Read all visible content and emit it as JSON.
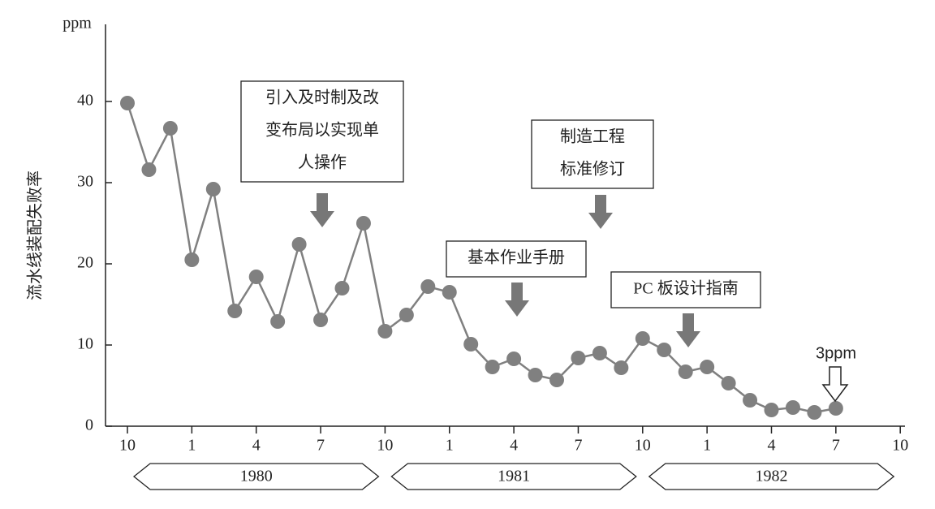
{
  "chart_data": {
    "type": "line",
    "y_unit": "ppm",
    "y_axis_label": "流水线装配失败率",
    "categories": [
      "10",
      null,
      null,
      "1",
      null,
      null,
      "4",
      null,
      null,
      "7",
      null,
      null,
      "10",
      null,
      null,
      "1",
      null,
      null,
      "4",
      null,
      null,
      "7",
      null,
      null,
      "10",
      null,
      null,
      "1",
      null,
      null,
      "4",
      null,
      null,
      "7",
      null,
      null,
      "10"
    ],
    "values": [
      39.8,
      31.6,
      36.7,
      20.5,
      29.2,
      14.2,
      18.4,
      12.9,
      22.4,
      13.1,
      17.0,
      25.0,
      11.7,
      13.7,
      17.2,
      16.5,
      10.1,
      7.3,
      8.3,
      6.3,
      5.7,
      8.4,
      9.0,
      7.2,
      10.8,
      9.4,
      6.7,
      7.3,
      5.3,
      3.2,
      2.0,
      2.3,
      1.7,
      2.2,
      null,
      null,
      null
    ],
    "color": "#808080",
    "ylim": [
      0,
      50
    ],
    "yticks": [
      0,
      10,
      20,
      30,
      40
    ],
    "year_bands": [
      "1980",
      "1981",
      "1982"
    ],
    "annotations": [
      {
        "lines": [
          "引入及时制及改",
          "变布局以实现单",
          "人操作"
        ]
      },
      {
        "lines": [
          "制造工程",
          "标准修订"
        ]
      },
      {
        "lines": [
          "基本作业手册"
        ]
      },
      {
        "lines": [
          "PC 板设计指南"
        ]
      }
    ],
    "callout": "3ppm"
  }
}
